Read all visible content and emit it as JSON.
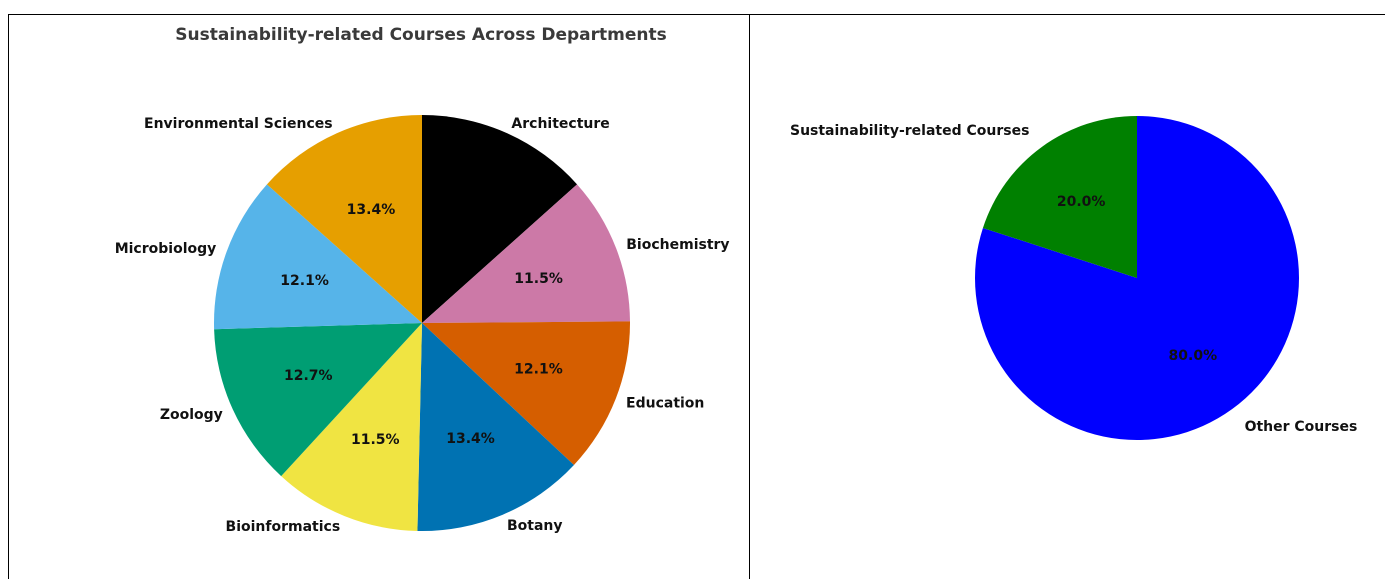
{
  "chart_data": [
    {
      "type": "pie",
      "title": "Sustainability-related Courses Across Departments",
      "labels": [
        "Architecture",
        "Biochemistry",
        "Education",
        "Botany",
        "Bioinformatics",
        "Zoology",
        "Microbiology",
        "Environmental Sciences"
      ],
      "values": [
        13.4,
        11.5,
        12.1,
        13.4,
        11.5,
        12.7,
        12.1,
        13.4
      ],
      "percent_labels": [
        "",
        "11.5%",
        "12.1%",
        "13.4%",
        "11.5%",
        "12.7%",
        "12.1%",
        "13.4%"
      ],
      "colors": [
        "#000000",
        "#cc79a7",
        "#d55e00",
        "#0072b2",
        "#f0e442",
        "#009e73",
        "#56b4e9",
        "#e69f00"
      ],
      "start_angle_deg": 90,
      "direction": "clockwise"
    },
    {
      "type": "pie",
      "title": "",
      "labels": [
        "Other Courses",
        "Sustainability-related Courses"
      ],
      "values": [
        80.0,
        20.0
      ],
      "percent_labels": [
        "80.0%",
        "20.0%"
      ],
      "colors": [
        "#0000ff",
        "#008000"
      ],
      "start_angle_deg": 90,
      "direction": "clockwise"
    }
  ]
}
